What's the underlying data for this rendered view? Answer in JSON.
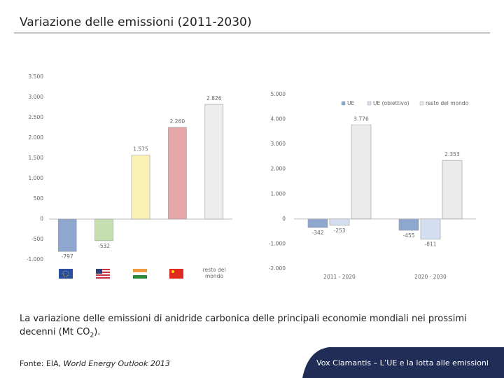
{
  "title": "Variazione delle emissioni (2011-2030)",
  "caption": [
    "La variazione delle emissioni di anidride carbonica delle principali economie mondiali nei prossimi decenni (Mt CO",
    "2",
    ")."
  ],
  "source": [
    "Fonte: EIA, ",
    "World Energy Outlook 2013"
  ],
  "footer": "Vox Clamantis – L’UE e la lotta alle emissioni",
  "chart_data": [
    {
      "type": "bar",
      "categories": [
        null,
        null,
        null,
        null,
        "resto del mondo"
      ],
      "values": [
        -797,
        -532,
        1575,
        2260,
        2826
      ],
      "value_labels": [
        "-797",
        "-532",
        "1.575",
        "2.260",
        "2.826"
      ],
      "colors": [
        "#8ea7cf",
        "#c6dfb1",
        "#fbf0b6",
        "#e6a7a9",
        "#ededed"
      ],
      "ylim": [
        -1000,
        3500
      ],
      "yticks": [
        {
          "value": -1000,
          "label": "-1.000"
        },
        -500,
        0,
        500,
        {
          "value": 1000,
          "label": "1.000"
        },
        {
          "value": 1500,
          "label": "1.500"
        },
        {
          "value": 2000,
          "label": "2.000"
        },
        {
          "value": 2500,
          "label": "2.500"
        },
        {
          "value": 3000,
          "label": "3.000"
        },
        {
          "value": 3500,
          "label": "3.500"
        }
      ]
    },
    {
      "type": "bar",
      "categories": [
        "2011 - 2020",
        "2020 - 2030"
      ],
      "series": [
        {
          "name": "UE",
          "color": "#8ea7cf",
          "values": [
            -342,
            -455
          ]
        },
        {
          "name": "UE (obiettivo)",
          "color": "#d3def0",
          "values": [
            -253,
            -811
          ]
        },
        {
          "name": "resto del mondo",
          "color": "#ebebeb",
          "values": [
            3776,
            2353
          ],
          "value_labels": [
            "3.776",
            "2.353"
          ]
        }
      ],
      "value_labels": [
        [
          "-342",
          "-455"
        ],
        [
          "-253",
          "-811"
        ]
      ],
      "ylim": [
        -2000,
        5000
      ],
      "yticks": [
        {
          "value": -2000,
          "label": "-2.000"
        },
        {
          "value": -1000,
          "label": "-1.000"
        },
        0,
        {
          "value": 1000,
          "label": "1.000"
        },
        {
          "value": 2000,
          "label": "2.000"
        },
        {
          "value": 3000,
          "label": "3.000"
        },
        {
          "value": 4000,
          "label": "4.000"
        },
        {
          "value": 5000,
          "label": "5.000"
        }
      ],
      "legend": "top-right"
    }
  ]
}
